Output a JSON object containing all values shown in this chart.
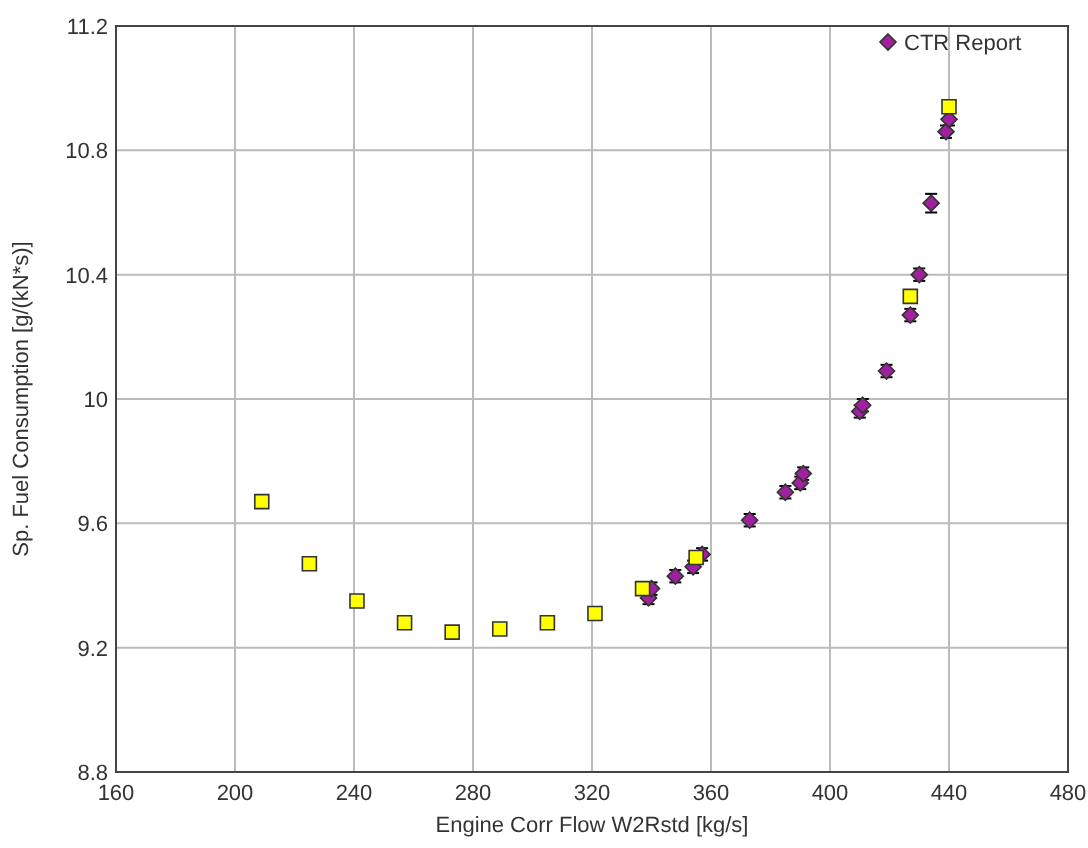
{
  "chart_data": {
    "type": "scatter",
    "xlabel": "Engine Corr Flow W2Rstd [kg/s]",
    "ylabel": "Sp. Fuel Consumption [g/(kN*s)]",
    "xlim": [
      160,
      480
    ],
    "xticks": [
      160,
      200,
      240,
      280,
      320,
      360,
      400,
      440,
      480
    ],
    "ylim": [
      8.8,
      11.2
    ],
    "yticks": [
      8.8,
      9.2,
      9.6,
      10,
      10.4,
      10.8,
      11.2
    ],
    "grid": true,
    "legend": "top right",
    "series": [
      {
        "color": "#ffff00",
        "marker": "square",
        "x": [
          209,
          225,
          241,
          257,
          273,
          289,
          305,
          321,
          337,
          355,
          427,
          440
        ],
        "values": [
          9.67,
          9.47,
          9.35,
          9.28,
          9.25,
          9.26,
          9.28,
          9.31,
          9.39,
          9.49,
          10.33,
          10.94
        ]
      },
      {
        "name": "CTR Report",
        "color": "#a020a0",
        "marker": "diamond",
        "x": [
          339,
          340,
          348,
          354,
          357,
          373,
          385,
          390,
          391,
          410,
          411,
          419,
          427,
          430,
          434,
          439,
          440
        ],
        "values": [
          9.36,
          9.39,
          9.43,
          9.46,
          9.5,
          9.61,
          9.7,
          9.73,
          9.76,
          9.96,
          9.98,
          10.09,
          10.27,
          10.4,
          10.63,
          10.86,
          10.9
        ],
        "errors": [
          0.02,
          0.02,
          0.02,
          0.02,
          0.02,
          0.02,
          0.02,
          0.02,
          0.02,
          0.02,
          0.02,
          0.02,
          0.02,
          0.02,
          0.03,
          0.02,
          0.02
        ]
      }
    ]
  }
}
